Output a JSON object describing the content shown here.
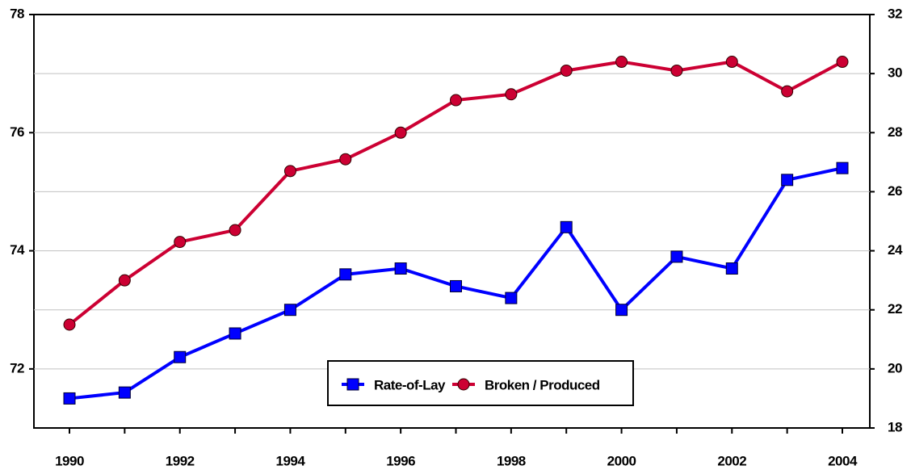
{
  "chart_data": {
    "type": "line",
    "categories": [
      "1990",
      "1991",
      "1992",
      "1993",
      "1994",
      "1995",
      "1996",
      "1997",
      "1998",
      "1999",
      "2000",
      "2001",
      "2002",
      "2003",
      "2004"
    ],
    "series": [
      {
        "name": "Rate-of-Lay",
        "color": "#0000ff",
        "marker": "square",
        "axis": "y",
        "values": [
          71.5,
          71.6,
          72.2,
          72.6,
          73.0,
          73.6,
          73.7,
          73.4,
          73.2,
          74.4,
          73.0,
          73.9,
          73.7,
          75.2,
          75.4
        ]
      },
      {
        "name": "Broken / Produced",
        "color": "#cc0033",
        "marker": "circle",
        "axis": "y2",
        "values": [
          21.5,
          23.0,
          24.3,
          24.7,
          26.7,
          27.1,
          28.0,
          29.1,
          29.3,
          30.1,
          30.4,
          30.1,
          30.4,
          29.4,
          30.4
        ]
      }
    ],
    "ylim": [
      71,
      78
    ],
    "yticks": [
      72,
      74,
      76,
      78
    ],
    "y2lim": [
      18,
      32
    ],
    "y2ticks": [
      18,
      20,
      22,
      24,
      26,
      28,
      30,
      32
    ],
    "grid": true,
    "legend": "bottom"
  }
}
